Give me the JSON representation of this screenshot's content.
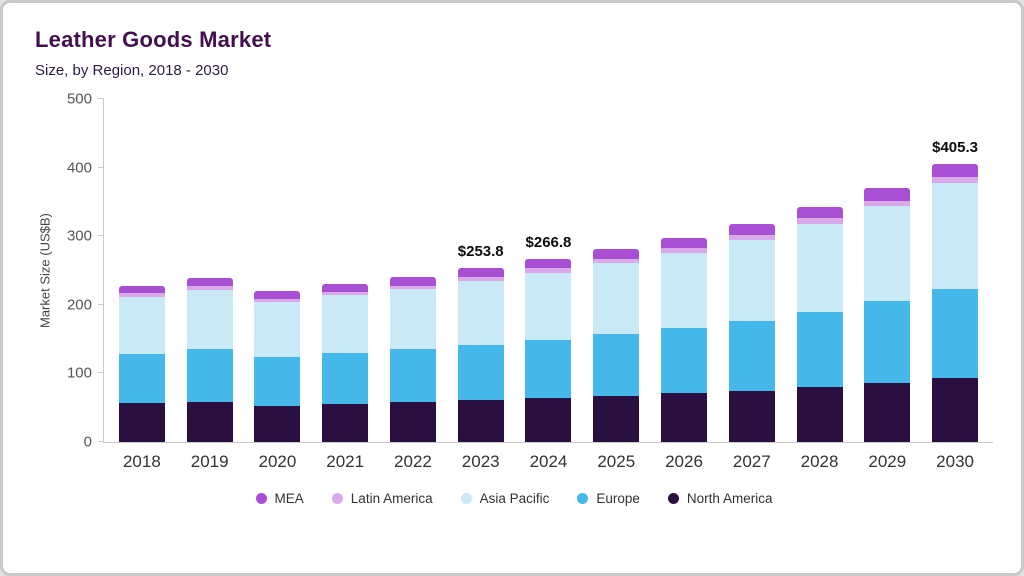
{
  "header": {
    "title": "Leather Goods Market",
    "subtitle": "Size, by Region, 2018 - 2030"
  },
  "chart_data": {
    "type": "bar",
    "stacked": true,
    "title": "Leather Goods Market",
    "subtitle": "Size, by Region, 2018 - 2030",
    "xlabel": "",
    "ylabel": "Market Size (US$B)",
    "ylim": [
      0,
      500
    ],
    "yticks": [
      0,
      100,
      200,
      300,
      400,
      500
    ],
    "grid": false,
    "legend_position": "bottom",
    "categories": [
      "2018",
      "2019",
      "2020",
      "2021",
      "2022",
      "2023",
      "2024",
      "2025",
      "2026",
      "2027",
      "2028",
      "2029",
      "2030"
    ],
    "series": [
      {
        "name": "North America",
        "color": "#2a1040",
        "values": [
          57,
          59,
          53,
          56,
          58,
          61,
          64,
          67,
          71,
          75,
          80,
          86,
          93
        ]
      },
      {
        "name": "Europe",
        "color": "#45b7e8",
        "values": [
          72,
          76,
          71,
          74,
          77,
          81,
          85,
          90,
          95,
          102,
          110,
          119,
          130
        ]
      },
      {
        "name": "Asia Pacific",
        "color": "#c9e9f7",
        "values": [
          83,
          87,
          80,
          84,
          88,
          93,
          98,
          104,
          110,
          118,
          128,
          139,
          155
        ]
      },
      {
        "name": "Latin America",
        "color": "#d9a9ea",
        "values": [
          5,
          5,
          5,
          5,
          5,
          6,
          6,
          6,
          7,
          7,
          8,
          8,
          8.3
        ]
      },
      {
        "name": "MEA",
        "color": "#a84fd4",
        "values": [
          11,
          12,
          11,
          11,
          12,
          12.8,
          13.8,
          14,
          14,
          16,
          17,
          19,
          19
        ]
      }
    ],
    "annotations": {
      "2023": "$253.8",
      "2024": "$266.8",
      "2030": "$405.3"
    }
  }
}
